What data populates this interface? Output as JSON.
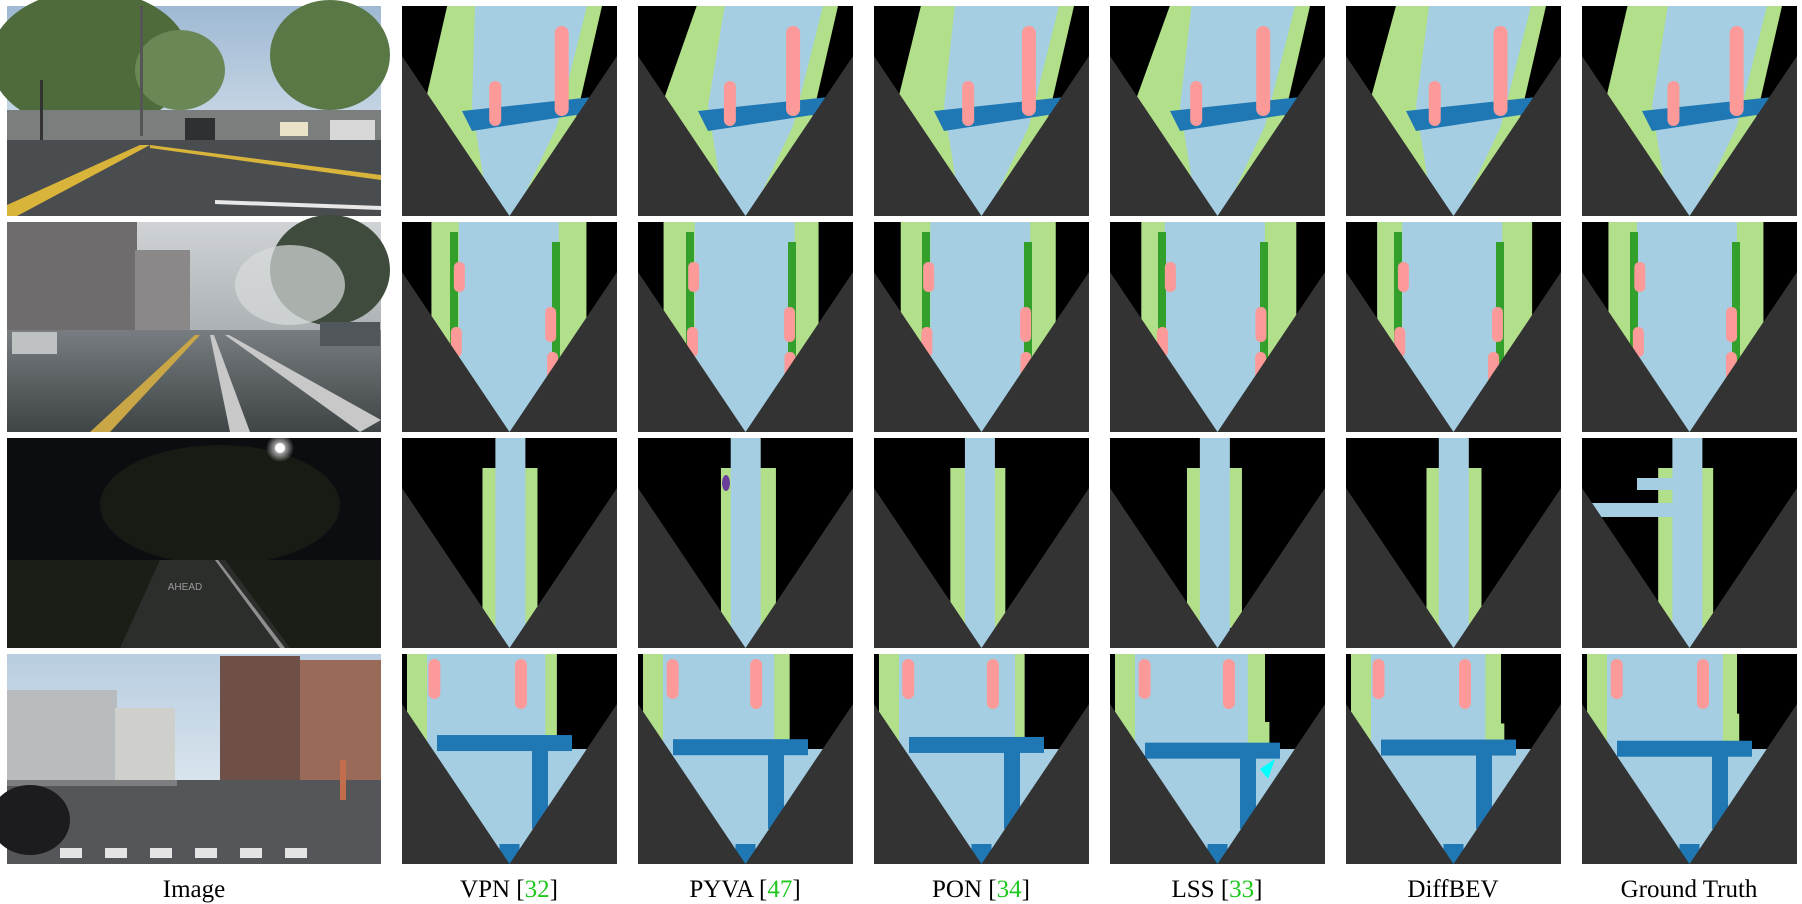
{
  "figure": {
    "columns": [
      {
        "id": "image",
        "caption": "Image",
        "ref": null
      },
      {
        "id": "vpn",
        "caption": "VPN",
        "ref": "32"
      },
      {
        "id": "pyva",
        "caption": "PYVA",
        "ref": "47"
      },
      {
        "id": "pon",
        "caption": "PON",
        "ref": "34"
      },
      {
        "id": "lss",
        "caption": "LSS",
        "ref": "33"
      },
      {
        "id": "diffbev",
        "caption": "DiffBEV",
        "ref": null
      },
      {
        "id": "gt",
        "caption": "Ground Truth",
        "ref": null
      }
    ],
    "rows": [
      {
        "id": "row-1",
        "scene": "daytime-intersection"
      },
      {
        "id": "row-2",
        "scene": "rainy-street"
      },
      {
        "id": "row-3",
        "scene": "night-street"
      },
      {
        "id": "row-4",
        "scene": "city-intersection"
      }
    ]
  },
  "legend_colors": {
    "drivable": "#a6cee3",
    "ped_crossing": "#1f78b4",
    "walkway": "#b2df8a",
    "carpark": "#33a02c",
    "car": "#fb9a99",
    "truck": "#e31a1c",
    "pedestrian": "#6a3d9a",
    "bicycle": "#00ffff",
    "outside_fov": "#333333",
    "background": "#000000"
  }
}
